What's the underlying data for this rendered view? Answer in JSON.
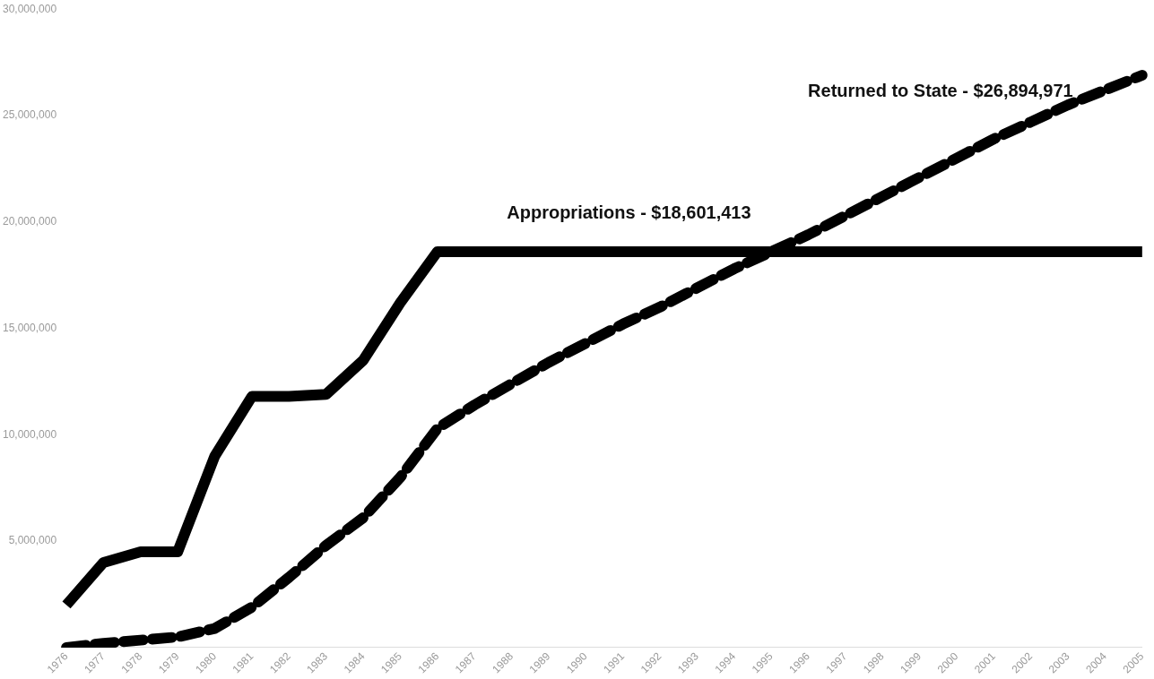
{
  "chart_data": {
    "type": "line",
    "categories": [
      "1976",
      "1977",
      "1978",
      "1979",
      "1980",
      "1981",
      "1982",
      "1983",
      "1984",
      "1985",
      "1986",
      "1987",
      "1988",
      "1989",
      "1990",
      "1991",
      "1992",
      "1993",
      "1994",
      "1995",
      "1996",
      "1997",
      "1998",
      "1999",
      "2000",
      "2001",
      "2002",
      "2003",
      "2004",
      "2005"
    ],
    "series": [
      {
        "color": "#000000",
        "line_style": "solid",
        "values": [
          2000000,
          4000000,
          4500000,
          4500000,
          9000000,
          11800000,
          11800000,
          11900000,
          13500000,
          16200000,
          18601413,
          18601413,
          18601413,
          18601413,
          18601413,
          18601413,
          18601413,
          18601413,
          18601413,
          18601413,
          18601413,
          18601413,
          18601413,
          18601413,
          18601413,
          18601413,
          18601413,
          18601413,
          18601413,
          18601413
        ]
      },
      {
        "color": "#000000",
        "line_style": "dashed",
        "values": [
          0,
          200000,
          350000,
          500000,
          900000,
          1900000,
          3300000,
          4800000,
          6100000,
          8000000,
          10300000,
          11400000,
          12400000,
          13400000,
          14300000,
          15200000,
          16000000,
          16900000,
          17800000,
          18600000,
          19400000,
          20300000,
          21200000,
          22100000,
          23000000,
          23900000,
          24700000,
          25500000,
          26200000,
          26894971
        ]
      }
    ],
    "ylim": [
      0,
      30000000
    ],
    "yticks": [
      {
        "value": 5000000,
        "label": "5,000,000"
      },
      {
        "value": 10000000,
        "label": "10,000,000"
      },
      {
        "value": 15000000,
        "label": "15,000,000"
      },
      {
        "value": 20000000,
        "label": "20,000,000"
      },
      {
        "value": 25000000,
        "label": "25,000,000"
      },
      {
        "value": 30000000,
        "label": "30,000,000"
      }
    ],
    "grid": false,
    "legend": false,
    "marker": "none",
    "annotations": [
      "Appropriations - $18,601,413",
      "Returned to State - $26,894,971"
    ]
  }
}
